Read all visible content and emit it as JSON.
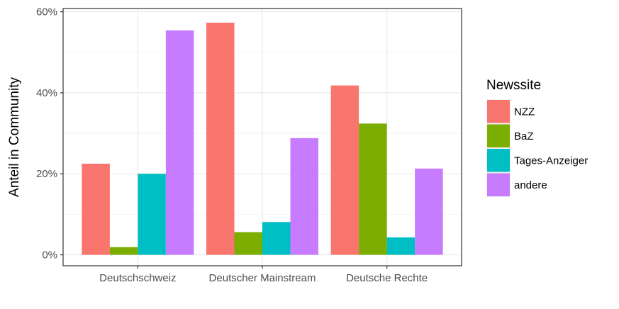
{
  "chart_data": {
    "type": "bar",
    "categories": [
      "Deutschschweiz",
      "Deutscher Mainstream",
      "Deutsche Rechte"
    ],
    "series": [
      {
        "name": "NZZ",
        "color": "#F8766D",
        "values": [
          22.5,
          57.3,
          41.8
        ]
      },
      {
        "name": "BaZ",
        "color": "#7CAE00",
        "values": [
          1.9,
          5.6,
          32.4
        ]
      },
      {
        "name": "Tages-Anzeiger",
        "color": "#00BFC4",
        "values": [
          20.0,
          8.1,
          4.3
        ]
      },
      {
        "name": "andere",
        "color": "#C77CFF",
        "values": [
          55.4,
          28.8,
          21.3
        ]
      }
    ],
    "ylabel": "Anteil in Community",
    "xlabel": "",
    "ylim": [
      -2.7,
      60.8
    ],
    "yticks": [
      0,
      20,
      40,
      60
    ],
    "ytick_labels": [
      "0%",
      "20%",
      "40%",
      "60%"
    ],
    "grid": true,
    "legend": {
      "title": "Newssite",
      "position": "right"
    }
  }
}
